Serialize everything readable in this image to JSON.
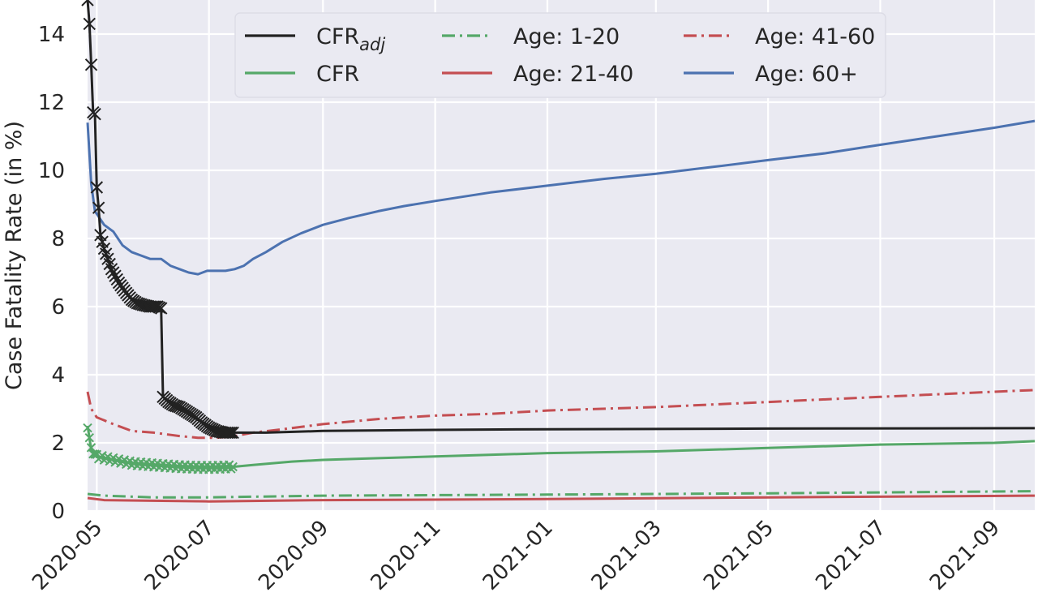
{
  "chart_data": {
    "type": "line",
    "title": "",
    "xlabel": "",
    "ylabel": "Case Fatality Rate (in %)",
    "ylim": [
      0,
      15
    ],
    "xlim": [
      "2020-04-26",
      "2021-09-23"
    ],
    "grid": true,
    "background": "#eaeaf2",
    "y_ticks": [
      0,
      2,
      4,
      6,
      8,
      10,
      12,
      14
    ],
    "x_ticks": [
      "2020-05",
      "2020-07",
      "2020-09",
      "2020-11",
      "2021-01",
      "2021-03",
      "2021-05",
      "2021-07",
      "2021-09"
    ],
    "legend": {
      "position": "top-center",
      "entries": [
        {
          "series": "cfr_adj",
          "label": "CFR",
          "subscript": "adj"
        },
        {
          "series": "cfr",
          "label": "CFR"
        },
        {
          "series": "age_1_20",
          "label": "Age: 1-20"
        },
        {
          "series": "age_21_40",
          "label": "Age: 21-40"
        },
        {
          "series": "age_41_60",
          "label": "Age: 41-60"
        },
        {
          "series": "age_60_plus",
          "label": "Age: 60+"
        }
      ]
    },
    "series": [
      {
        "key": "age_60_plus",
        "name": "Age: 60+",
        "color": "#4c72b0",
        "style": "solid",
        "points": [
          [
            "2020-04-26",
            11.4
          ],
          [
            "2020-04-28",
            9.6
          ],
          [
            "2020-04-30",
            8.8
          ],
          [
            "2020-05-05",
            8.4
          ],
          [
            "2020-05-10",
            8.2
          ],
          [
            "2020-05-15",
            7.8
          ],
          [
            "2020-05-20",
            7.6
          ],
          [
            "2020-05-25",
            7.5
          ],
          [
            "2020-05-30",
            7.4
          ],
          [
            "2020-06-05",
            7.4
          ],
          [
            "2020-06-10",
            7.2
          ],
          [
            "2020-06-15",
            7.1
          ],
          [
            "2020-06-20",
            7.0
          ],
          [
            "2020-06-25",
            6.95
          ],
          [
            "2020-06-30",
            7.05
          ],
          [
            "2020-07-05",
            7.05
          ],
          [
            "2020-07-10",
            7.05
          ],
          [
            "2020-07-15",
            7.1
          ],
          [
            "2020-07-20",
            7.2
          ],
          [
            "2020-07-25",
            7.4
          ],
          [
            "2020-08-01",
            7.6
          ],
          [
            "2020-08-10",
            7.9
          ],
          [
            "2020-08-20",
            8.15
          ],
          [
            "2020-09-01",
            8.4
          ],
          [
            "2020-09-15",
            8.6
          ],
          [
            "2020-10-01",
            8.8
          ],
          [
            "2020-10-15",
            8.95
          ],
          [
            "2020-11-01",
            9.1
          ],
          [
            "2020-12-01",
            9.35
          ],
          [
            "2021-01-01",
            9.55
          ],
          [
            "2021-02-01",
            9.75
          ],
          [
            "2021-03-01",
            9.9
          ],
          [
            "2021-04-01",
            10.1
          ],
          [
            "2021-05-01",
            10.3
          ],
          [
            "2021-06-01",
            10.5
          ],
          [
            "2021-07-01",
            10.75
          ],
          [
            "2021-08-01",
            11.0
          ],
          [
            "2021-09-01",
            11.25
          ],
          [
            "2021-09-23",
            11.45
          ]
        ]
      },
      {
        "key": "age_41_60",
        "name": "Age: 41-60",
        "color": "#c44e52",
        "style": "dashdot",
        "points": [
          [
            "2020-04-26",
            3.5
          ],
          [
            "2020-04-28",
            3.0
          ],
          [
            "2020-05-01",
            2.75
          ],
          [
            "2020-05-10",
            2.55
          ],
          [
            "2020-05-20",
            2.35
          ],
          [
            "2020-06-01",
            2.3
          ],
          [
            "2020-06-15",
            2.2
          ],
          [
            "2020-06-25",
            2.15
          ],
          [
            "2020-07-05",
            2.15
          ],
          [
            "2020-07-15",
            2.2
          ],
          [
            "2020-07-25",
            2.3
          ],
          [
            "2020-08-10",
            2.4
          ],
          [
            "2020-09-01",
            2.55
          ],
          [
            "2020-10-01",
            2.7
          ],
          [
            "2020-11-01",
            2.8
          ],
          [
            "2020-12-01",
            2.85
          ],
          [
            "2021-01-01",
            2.95
          ],
          [
            "2021-03-01",
            3.05
          ],
          [
            "2021-05-01",
            3.2
          ],
          [
            "2021-07-01",
            3.35
          ],
          [
            "2021-09-01",
            3.5
          ],
          [
            "2021-09-23",
            3.55
          ]
        ]
      },
      {
        "key": "cfr_adj",
        "name": "CFR",
        "color": "#222222",
        "style": "solid",
        "points": [
          [
            "2020-04-26",
            15.0
          ],
          [
            "2020-04-27",
            14.3
          ],
          [
            "2020-04-28",
            13.1
          ],
          [
            "2020-04-29",
            11.7
          ],
          [
            "2020-04-30",
            11.65
          ],
          [
            "2020-05-01",
            9.5
          ],
          [
            "2020-05-02",
            8.9
          ],
          [
            "2020-05-03",
            8.1
          ],
          [
            "2020-05-04",
            7.9
          ],
          [
            "2020-05-05",
            7.7
          ],
          [
            "2020-05-07",
            7.4
          ],
          [
            "2020-05-09",
            7.1
          ],
          [
            "2020-05-11",
            6.9
          ],
          [
            "2020-05-13",
            6.7
          ],
          [
            "2020-05-15",
            6.55
          ],
          [
            "2020-05-17",
            6.4
          ],
          [
            "2020-05-20",
            6.2
          ],
          [
            "2020-05-23",
            6.1
          ],
          [
            "2020-05-26",
            6.05
          ],
          [
            "2020-05-30",
            6.0
          ],
          [
            "2020-06-03",
            6.0
          ],
          [
            "2020-06-05",
            5.95
          ],
          [
            "2020-06-06",
            3.35
          ],
          [
            "2020-06-09",
            3.2
          ],
          [
            "2020-06-12",
            3.1
          ],
          [
            "2020-06-15",
            3.05
          ],
          [
            "2020-06-18",
            2.95
          ],
          [
            "2020-06-21",
            2.85
          ],
          [
            "2020-06-24",
            2.75
          ],
          [
            "2020-06-27",
            2.6
          ],
          [
            "2020-07-01",
            2.45
          ],
          [
            "2020-07-05",
            2.35
          ],
          [
            "2020-07-09",
            2.3
          ],
          [
            "2020-07-14",
            2.3
          ],
          [
            "2020-08-01",
            2.3
          ],
          [
            "2020-09-01",
            2.35
          ],
          [
            "2020-11-01",
            2.38
          ],
          [
            "2021-01-01",
            2.4
          ],
          [
            "2021-05-01",
            2.42
          ],
          [
            "2021-09-23",
            2.43
          ]
        ]
      },
      {
        "key": "cfr",
        "name": "CFR",
        "color": "#55a868",
        "style": "solid",
        "points": [
          [
            "2020-04-26",
            2.5
          ],
          [
            "2020-04-28",
            1.8
          ],
          [
            "2020-05-01",
            1.6
          ],
          [
            "2020-05-10",
            1.5
          ],
          [
            "2020-05-20",
            1.4
          ],
          [
            "2020-06-01",
            1.35
          ],
          [
            "2020-06-15",
            1.3
          ],
          [
            "2020-06-25",
            1.28
          ],
          [
            "2020-07-05",
            1.28
          ],
          [
            "2020-07-15",
            1.3
          ],
          [
            "2020-07-25",
            1.35
          ],
          [
            "2020-08-15",
            1.45
          ],
          [
            "2020-09-01",
            1.5
          ],
          [
            "2020-10-01",
            1.55
          ],
          [
            "2020-11-01",
            1.6
          ],
          [
            "2021-01-01",
            1.7
          ],
          [
            "2021-03-01",
            1.75
          ],
          [
            "2021-05-01",
            1.85
          ],
          [
            "2021-07-01",
            1.95
          ],
          [
            "2021-09-01",
            2.0
          ],
          [
            "2021-09-23",
            2.05
          ]
        ]
      },
      {
        "key": "age_1_20",
        "name": "Age: 1-20",
        "color": "#55a868",
        "style": "dashdot",
        "points": [
          [
            "2020-04-26",
            0.5
          ],
          [
            "2020-05-05",
            0.45
          ],
          [
            "2020-06-01",
            0.4
          ],
          [
            "2020-07-01",
            0.4
          ],
          [
            "2020-09-01",
            0.45
          ],
          [
            "2021-01-01",
            0.48
          ],
          [
            "2021-05-01",
            0.52
          ],
          [
            "2021-09-23",
            0.58
          ]
        ]
      },
      {
        "key": "age_21_40",
        "name": "Age: 21-40",
        "color": "#c44e52",
        "style": "solid",
        "points": [
          [
            "2020-04-26",
            0.38
          ],
          [
            "2020-05-05",
            0.32
          ],
          [
            "2020-06-01",
            0.3
          ],
          [
            "2020-07-01",
            0.28
          ],
          [
            "2020-09-01",
            0.32
          ],
          [
            "2021-01-01",
            0.35
          ],
          [
            "2021-05-01",
            0.4
          ],
          [
            "2021-09-23",
            0.45
          ]
        ]
      }
    ],
    "markers": {
      "cfr_adj_x": {
        "color": "#222222",
        "from": "2020-04-26",
        "to": "2020-07-14"
      },
      "cfr_green_x": {
        "color": "#55a868",
        "from": "2020-04-26",
        "to": "2020-07-14"
      }
    }
  }
}
